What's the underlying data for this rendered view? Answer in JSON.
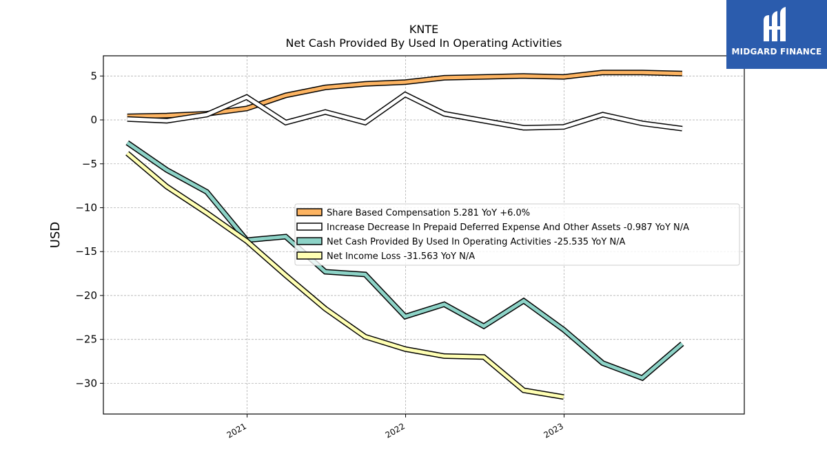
{
  "chart_data": {
    "type": "line",
    "title": "KNTE",
    "subtitle": "Net Cash Provided By Used In Operating Activities",
    "ylabel": "USD",
    "xlim": [
      "2020-02-05",
      "2024-02-20"
    ],
    "ylim": [
      -33.5,
      7.3
    ],
    "yticks": [
      5,
      0,
      -5,
      -10,
      -15,
      -20,
      -25,
      -30
    ],
    "xticks": [
      {
        "label": "2021",
        "date": "2021-01-01"
      },
      {
        "label": "2022",
        "date": "2022-01-01"
      },
      {
        "label": "2023",
        "date": "2023-01-01"
      }
    ],
    "grid": true,
    "legend_position": "center-right",
    "x": [
      "2020-03-31",
      "2020-06-30",
      "2020-09-30",
      "2020-12-31",
      "2021-03-31",
      "2021-06-30",
      "2021-09-30",
      "2021-12-31",
      "2022-03-31",
      "2022-06-30",
      "2022-09-30",
      "2022-12-31",
      "2023-03-31",
      "2023-06-30",
      "2023-09-30"
    ],
    "series": [
      {
        "name": "Share Based Compensation",
        "legend": "Share Based Compensation  5.281 YoY +6.0%",
        "color": "#fdb462",
        "values": [
          0.4,
          0.5,
          0.7,
          1.3,
          2.8,
          3.7,
          4.1,
          4.3,
          4.8,
          4.9,
          5.0,
          4.9,
          5.4,
          5.4,
          5.28
        ]
      },
      {
        "name": "Increase Decrease In Prepaid Deferred Expense And Other Assets",
        "legend": "Increase Decrease In Prepaid Deferred Expense And Other Assets  -0.987 YoY N/A",
        "color": "#ffffff",
        "values": [
          0.1,
          -0.1,
          0.6,
          2.6,
          -0.3,
          0.9,
          -0.3,
          2.9,
          0.7,
          -0.1,
          -0.9,
          -0.8,
          0.6,
          -0.4,
          -0.99
        ]
      },
      {
        "name": "Net Cash Provided By Used In Operating Activities",
        "legend": "Net Cash Provided By Used In Operating Activities  -25.535 YoY N/A",
        "color": "#8dd3c7",
        "values": [
          -2.6,
          -5.7,
          -8.2,
          -13.7,
          -13.3,
          -17.3,
          -17.6,
          -22.4,
          -21.0,
          -23.5,
          -20.6,
          -23.9,
          -27.7,
          -29.4,
          -25.5
        ]
      },
      {
        "name": "Net Income Loss",
        "legend": "Net Income Loss  -31.563 YoY N/A",
        "color": "#ffffb3",
        "values": [
          -3.8,
          -7.6,
          -10.6,
          -13.8,
          -17.7,
          -21.5,
          -24.7,
          -26.1,
          -26.9,
          -27.0,
          -30.8,
          -31.56,
          null,
          null,
          null
        ]
      }
    ]
  },
  "logo": {
    "text": "MIDGARD FINANCE",
    "background": "#2b5cad"
  }
}
